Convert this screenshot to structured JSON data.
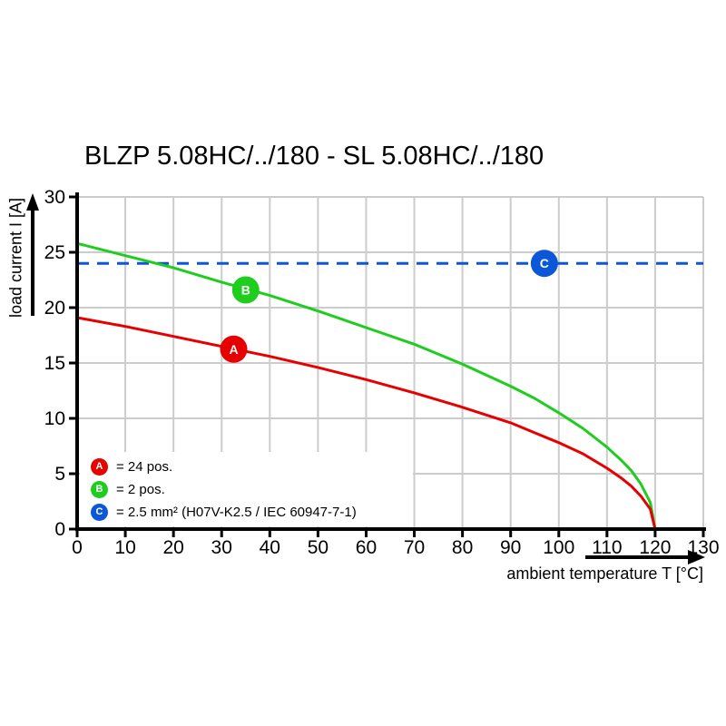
{
  "chart_data": {
    "type": "line",
    "title": "BLZP 5.08HC/../180 - SL 5.08HC/../180",
    "xlabel": "ambient temperature T [°C]",
    "ylabel": "load current I [A]",
    "xlim": [
      0,
      130
    ],
    "ylim": [
      0,
      30
    ],
    "x_ticks": [
      0,
      10,
      20,
      30,
      40,
      50,
      60,
      70,
      80,
      90,
      100,
      110,
      120,
      130
    ],
    "y_ticks": [
      0,
      5,
      10,
      15,
      20,
      25,
      30
    ],
    "grid": true,
    "grid_color": "#cccccc",
    "axis_color": "#000000",
    "legend_position": "lower-left",
    "series": [
      {
        "name": "A",
        "legend_label": "= 24 pos.",
        "color": "#e60000",
        "style": "solid",
        "marker": {
          "letter": "A",
          "t": 32.5,
          "i": 16.25
        },
        "points": [
          [
            0,
            19.1
          ],
          [
            10,
            18.3
          ],
          [
            20,
            17.4
          ],
          [
            30,
            16.5
          ],
          [
            40,
            15.6
          ],
          [
            50,
            14.6
          ],
          [
            60,
            13.5
          ],
          [
            70,
            12.3
          ],
          [
            80,
            11.0
          ],
          [
            90,
            9.6
          ],
          [
            95,
            8.7
          ],
          [
            100,
            7.8
          ],
          [
            105,
            6.8
          ],
          [
            110,
            5.5
          ],
          [
            113,
            4.6
          ],
          [
            115,
            3.9
          ],
          [
            117,
            3.0
          ],
          [
            119,
            1.8
          ],
          [
            120,
            0
          ]
        ]
      },
      {
        "name": "B",
        "legend_label": "= 2 pos.",
        "color": "#1fcd1f",
        "style": "solid",
        "marker": {
          "letter": "B",
          "t": 35,
          "i": 21.6
        },
        "points": [
          [
            0,
            25.8
          ],
          [
            10,
            24.7
          ],
          [
            20,
            23.6
          ],
          [
            30,
            22.3
          ],
          [
            40,
            21.1
          ],
          [
            50,
            19.7
          ],
          [
            60,
            18.2
          ],
          [
            70,
            16.7
          ],
          [
            80,
            14.9
          ],
          [
            90,
            12.9
          ],
          [
            95,
            11.8
          ],
          [
            100,
            10.5
          ],
          [
            105,
            9.1
          ],
          [
            110,
            7.4
          ],
          [
            113,
            6.2
          ],
          [
            115,
            5.3
          ],
          [
            117,
            4.1
          ],
          [
            119,
            2.4
          ],
          [
            120,
            0
          ]
        ]
      },
      {
        "name": "C",
        "legend_label": "= 2.5 mm² (H07V-K2.5 / IEC 60947-7-1)",
        "color": "#0b57d8",
        "style": "dashed",
        "marker": {
          "letter": "C",
          "t": 97,
          "i": 24
        },
        "points": [
          [
            0,
            24
          ],
          [
            130,
            24
          ]
        ]
      }
    ]
  }
}
